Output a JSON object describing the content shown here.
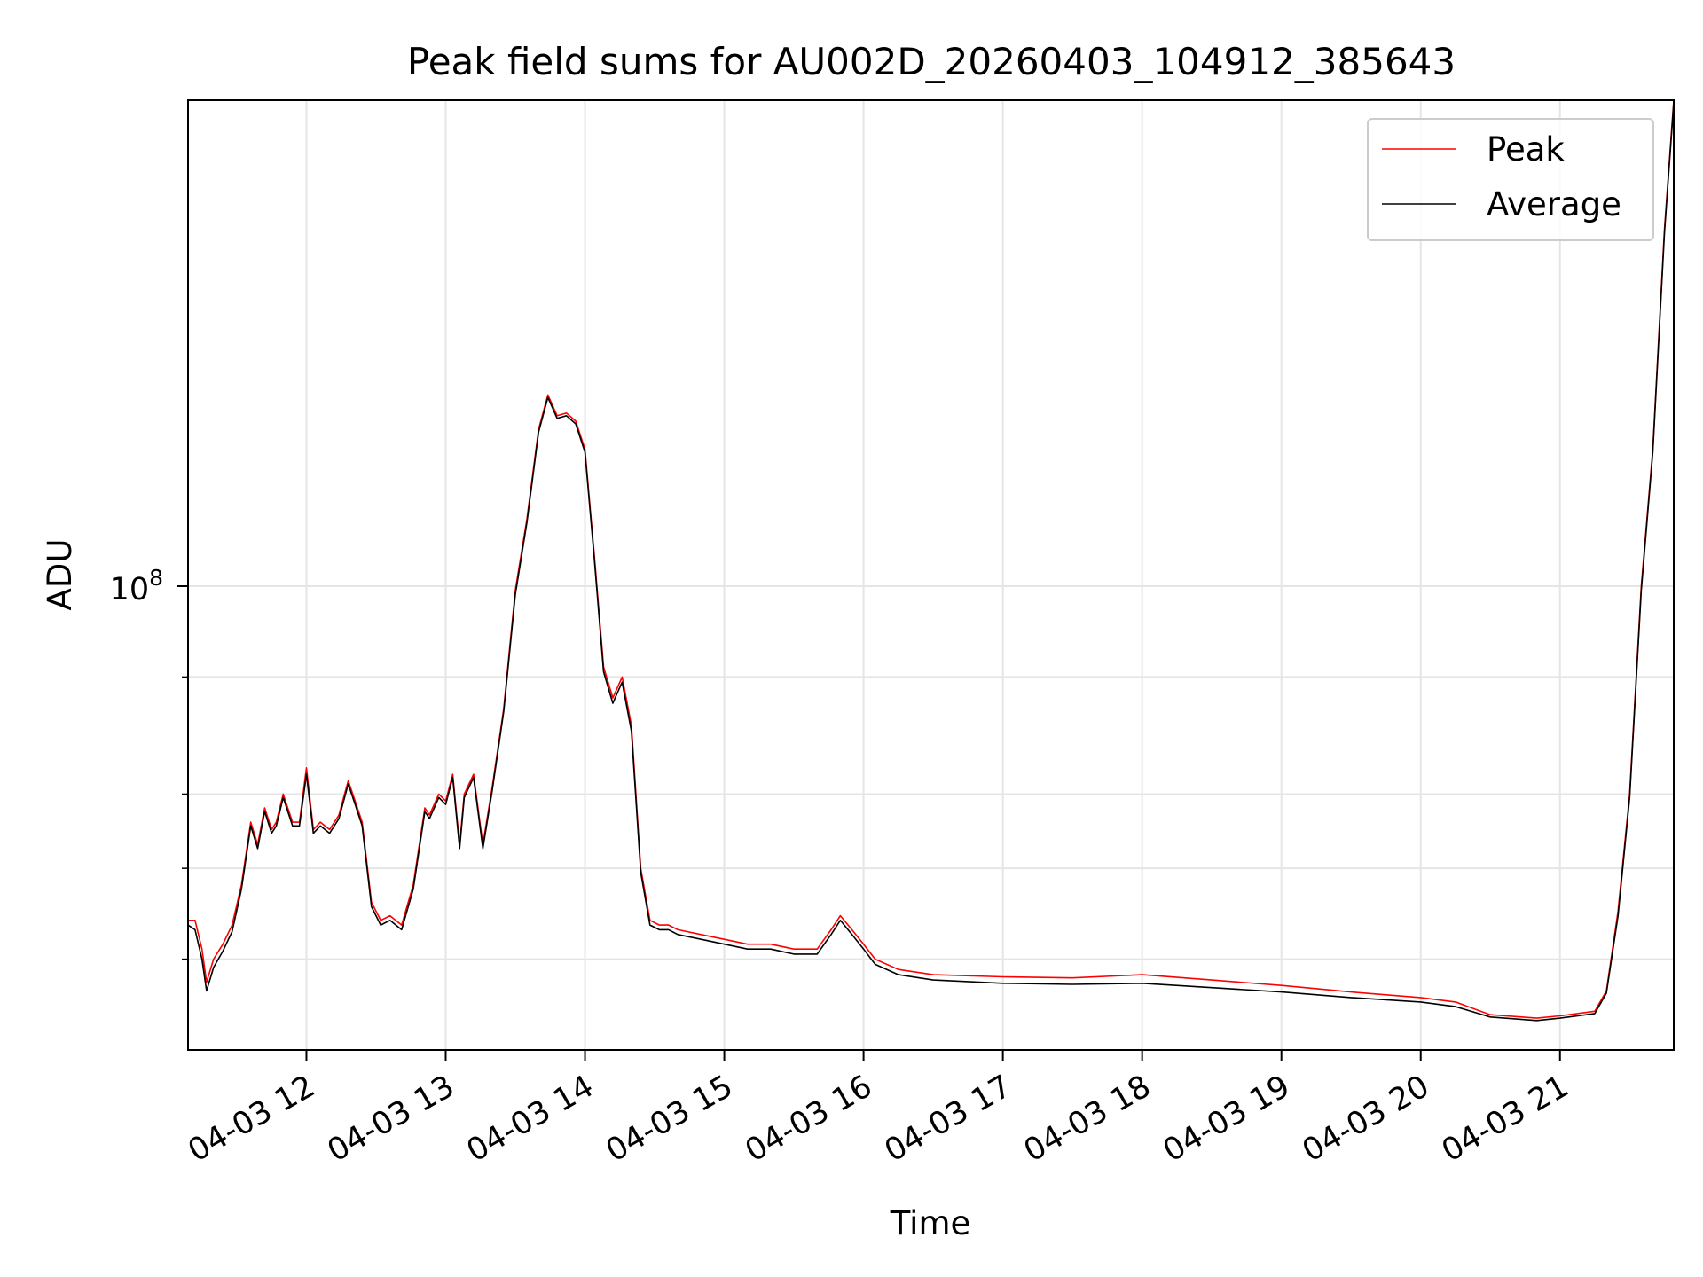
{
  "chart_data": {
    "type": "line",
    "title": "Peak field sums for AU002D_20260403_104912_385643",
    "xlabel": "Time",
    "ylabel": "ADU",
    "yscale": "log",
    "ylim": [
      32000000,
      330000000
    ],
    "xlim": [
      "2026-04-03 11:09",
      "2026-04-03 21:49"
    ],
    "x_ticks": [
      {
        "label": "04-03 12",
        "time": "2026-04-03 12:00"
      },
      {
        "label": "04-03 13",
        "time": "2026-04-03 13:00"
      },
      {
        "label": "04-03 14",
        "time": "2026-04-03 14:00"
      },
      {
        "label": "04-03 15",
        "time": "2026-04-03 15:00"
      },
      {
        "label": "04-03 16",
        "time": "2026-04-03 16:00"
      },
      {
        "label": "04-03 17",
        "time": "2026-04-03 17:00"
      },
      {
        "label": "04-03 18",
        "time": "2026-04-03 18:00"
      },
      {
        "label": "04-03 19",
        "time": "2026-04-03 19:00"
      },
      {
        "label": "04-03 20",
        "time": "2026-04-03 20:00"
      },
      {
        "label": "04-03 21",
        "time": "2026-04-03 21:00"
      }
    ],
    "y_major_tick": {
      "value": 100000000,
      "label_base": "10",
      "label_exp": "8"
    },
    "y_minor_ticks": [
      40000000,
      50000000,
      60000000,
      80000000
    ],
    "grid": true,
    "legend_position": "top-right",
    "series": [
      {
        "name": "Peak",
        "color": "#ff0000",
        "x": [
          "2026-04-03 11:09",
          "2026-04-03 11:12",
          "2026-04-03 11:15",
          "2026-04-03 11:17",
          "2026-04-03 11:20",
          "2026-04-03 11:24",
          "2026-04-03 11:28",
          "2026-04-03 11:32",
          "2026-04-03 11:36",
          "2026-04-03 11:39",
          "2026-04-03 11:42",
          "2026-04-03 11:45",
          "2026-04-03 11:47",
          "2026-04-03 11:50",
          "2026-04-03 11:54",
          "2026-04-03 11:57",
          "2026-04-03 12:00",
          "2026-04-03 12:03",
          "2026-04-03 12:06",
          "2026-04-03 12:10",
          "2026-04-03 12:14",
          "2026-04-03 12:18",
          "2026-04-03 12:21",
          "2026-04-03 12:24",
          "2026-04-03 12:28",
          "2026-04-03 12:32",
          "2026-04-03 12:36",
          "2026-04-03 12:41",
          "2026-04-03 12:46",
          "2026-04-03 12:51",
          "2026-04-03 12:53",
          "2026-04-03 12:57",
          "2026-04-03 13:00",
          "2026-04-03 13:03",
          "2026-04-03 13:06",
          "2026-04-03 13:08",
          "2026-04-03 13:12",
          "2026-04-03 13:16",
          "2026-04-03 13:20",
          "2026-04-03 13:25",
          "2026-04-03 13:30",
          "2026-04-03 13:35",
          "2026-04-03 13:40",
          "2026-04-03 13:44",
          "2026-04-03 13:48",
          "2026-04-03 13:52",
          "2026-04-03 13:56",
          "2026-04-03 14:00",
          "2026-04-03 14:04",
          "2026-04-03 14:08",
          "2026-04-03 14:12",
          "2026-04-03 14:16",
          "2026-04-03 14:20",
          "2026-04-03 14:24",
          "2026-04-03 14:28",
          "2026-04-03 14:32",
          "2026-04-03 14:36",
          "2026-04-03 14:40",
          "2026-04-03 14:50",
          "2026-04-03 15:00",
          "2026-04-03 15:10",
          "2026-04-03 15:20",
          "2026-04-03 15:30",
          "2026-04-03 15:40",
          "2026-04-03 15:46",
          "2026-04-03 15:50",
          "2026-04-03 15:55",
          "2026-04-03 16:00",
          "2026-04-03 16:05",
          "2026-04-03 16:15",
          "2026-04-03 16:30",
          "2026-04-03 17:00",
          "2026-04-03 17:30",
          "2026-04-03 18:00",
          "2026-04-03 18:30",
          "2026-04-03 19:00",
          "2026-04-03 19:30",
          "2026-04-03 20:00",
          "2026-04-03 20:15",
          "2026-04-03 20:30",
          "2026-04-03 20:50",
          "2026-04-03 21:00",
          "2026-04-03 21:15",
          "2026-04-03 21:20",
          "2026-04-03 21:25",
          "2026-04-03 21:30",
          "2026-04-03 21:35",
          "2026-04-03 21:40",
          "2026-04-03 21:45",
          "2026-04-03 21:49"
        ],
        "y": [
          44000000,
          44000000,
          41000000,
          37800000,
          40000000,
          41500000,
          43500000,
          48000000,
          56000000,
          53000000,
          58000000,
          55000000,
          56000000,
          60000000,
          56000000,
          56000000,
          64000000,
          55000000,
          56000000,
          55000000,
          57000000,
          62000000,
          59000000,
          56000000,
          46000000,
          44000000,
          44500000,
          43500000,
          48000000,
          58000000,
          57000000,
          60000000,
          59000000,
          63000000,
          53000000,
          60000000,
          63000000,
          53000000,
          61000000,
          74000000,
          99000000,
          118000000,
          147000000,
          160000000,
          152000000,
          153000000,
          150000000,
          140000000,
          108000000,
          82000000,
          76000000,
          80000000,
          71000000,
          50000000,
          44000000,
          43500000,
          43500000,
          43000000,
          42500000,
          42000000,
          41500000,
          41500000,
          41000000,
          41000000,
          43000000,
          44500000,
          43000000,
          41500000,
          40000000,
          39000000,
          38500000,
          38300000,
          38200000,
          38500000,
          38000000,
          37500000,
          36900000,
          36400000,
          36000000,
          34900000,
          34600000,
          34800000,
          35200000,
          37000000,
          45000000,
          60000000,
          100000000,
          140000000,
          240000000,
          330000000
        ]
      },
      {
        "name": "Average",
        "color": "#000000",
        "x": [
          "2026-04-03 11:09",
          "2026-04-03 11:12",
          "2026-04-03 11:15",
          "2026-04-03 11:17",
          "2026-04-03 11:20",
          "2026-04-03 11:24",
          "2026-04-03 11:28",
          "2026-04-03 11:32",
          "2026-04-03 11:36",
          "2026-04-03 11:39",
          "2026-04-03 11:42",
          "2026-04-03 11:45",
          "2026-04-03 11:47",
          "2026-04-03 11:50",
          "2026-04-03 11:54",
          "2026-04-03 11:57",
          "2026-04-03 12:00",
          "2026-04-03 12:03",
          "2026-04-03 12:06",
          "2026-04-03 12:10",
          "2026-04-03 12:14",
          "2026-04-03 12:18",
          "2026-04-03 12:21",
          "2026-04-03 12:24",
          "2026-04-03 12:28",
          "2026-04-03 12:32",
          "2026-04-03 12:36",
          "2026-04-03 12:41",
          "2026-04-03 12:46",
          "2026-04-03 12:51",
          "2026-04-03 12:53",
          "2026-04-03 12:57",
          "2026-04-03 13:00",
          "2026-04-03 13:03",
          "2026-04-03 13:06",
          "2026-04-03 13:08",
          "2026-04-03 13:12",
          "2026-04-03 13:16",
          "2026-04-03 13:20",
          "2026-04-03 13:25",
          "2026-04-03 13:30",
          "2026-04-03 13:35",
          "2026-04-03 13:40",
          "2026-04-03 13:44",
          "2026-04-03 13:48",
          "2026-04-03 13:52",
          "2026-04-03 13:56",
          "2026-04-03 14:00",
          "2026-04-03 14:04",
          "2026-04-03 14:08",
          "2026-04-03 14:12",
          "2026-04-03 14:16",
          "2026-04-03 14:20",
          "2026-04-03 14:24",
          "2026-04-03 14:28",
          "2026-04-03 14:32",
          "2026-04-03 14:36",
          "2026-04-03 14:40",
          "2026-04-03 14:50",
          "2026-04-03 15:00",
          "2026-04-03 15:10",
          "2026-04-03 15:20",
          "2026-04-03 15:30",
          "2026-04-03 15:40",
          "2026-04-03 15:46",
          "2026-04-03 15:50",
          "2026-04-03 15:55",
          "2026-04-03 16:00",
          "2026-04-03 16:05",
          "2026-04-03 16:15",
          "2026-04-03 16:30",
          "2026-04-03 17:00",
          "2026-04-03 17:30",
          "2026-04-03 18:00",
          "2026-04-03 18:30",
          "2026-04-03 19:00",
          "2026-04-03 19:30",
          "2026-04-03 20:00",
          "2026-04-03 20:15",
          "2026-04-03 20:30",
          "2026-04-03 20:50",
          "2026-04-03 21:00",
          "2026-04-03 21:15",
          "2026-04-03 21:20",
          "2026-04-03 21:25",
          "2026-04-03 21:30",
          "2026-04-03 21:35",
          "2026-04-03 21:40",
          "2026-04-03 21:45",
          "2026-04-03 21:49"
        ],
        "y": [
          43500000,
          43000000,
          40000000,
          37000000,
          39200000,
          40800000,
          42800000,
          47500000,
          55500000,
          52500000,
          57500000,
          54500000,
          55500000,
          59500000,
          55500000,
          55500000,
          63000000,
          54500000,
          55500000,
          54500000,
          56500000,
          61500000,
          58500000,
          55500000,
          45500000,
          43500000,
          44000000,
          43000000,
          47500000,
          57500000,
          56500000,
          59500000,
          58500000,
          62500000,
          52500000,
          59500000,
          62500000,
          52500000,
          60500000,
          73500000,
          98000000,
          117000000,
          146000000,
          159000000,
          151000000,
          152000000,
          149000000,
          139000000,
          107000000,
          81000000,
          75000000,
          79000000,
          70000000,
          49500000,
          43500000,
          43000000,
          43000000,
          42500000,
          42000000,
          41500000,
          41000000,
          41000000,
          40500000,
          40500000,
          42500000,
          44000000,
          42500000,
          41000000,
          39500000,
          38500000,
          38000000,
          37700000,
          37600000,
          37700000,
          37300000,
          36900000,
          36400000,
          36000000,
          35600000,
          34700000,
          34400000,
          34600000,
          35000000,
          36800000,
          44500000,
          59500000,
          99000000,
          139000000,
          238000000,
          328000000
        ]
      }
    ]
  }
}
